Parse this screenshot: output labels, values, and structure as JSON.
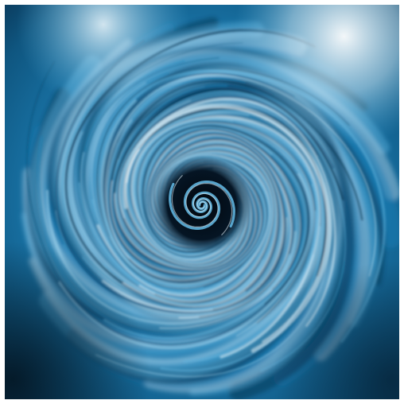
{
  "image": {
    "subject": "swirl",
    "palette": {
      "background": "#ffffff",
      "deep": "#0a2a44",
      "mid": "#1b7fb5",
      "light": "#5fb4de",
      "highlight": "#e6f4fb",
      "core": "#02060c"
    }
  }
}
